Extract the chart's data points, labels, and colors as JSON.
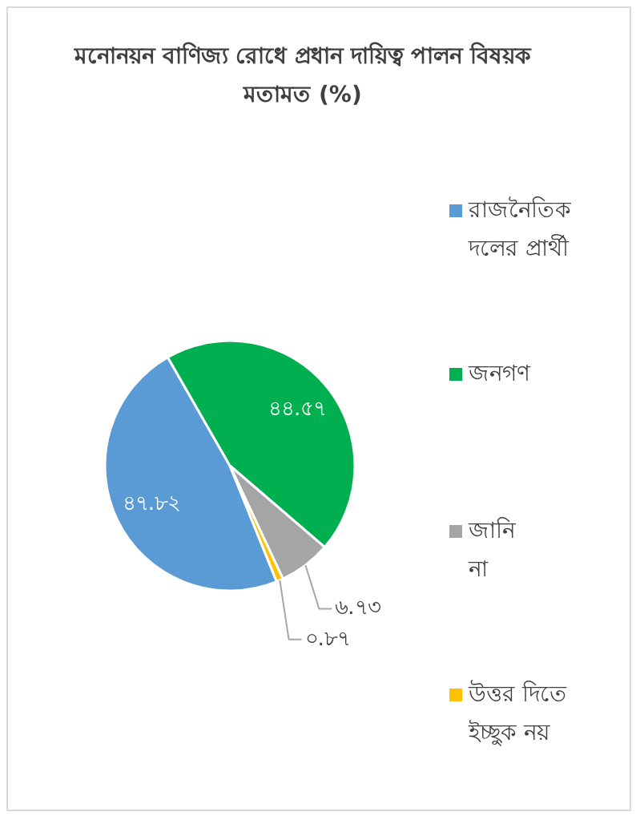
{
  "chart_data": {
    "type": "pie",
    "title": "মনোনয়ন বাণিজ্য রোধে প্রধান দায়িত্ব পালন বিষয়ক মতামত (%)",
    "categories": [
      "রাজনৈতিক দলের প্রার্থী",
      "জনগণ",
      "জানি না",
      "উত্তর দিতে ইচ্ছুক নয়"
    ],
    "values": [
      47.82,
      44.57,
      6.73,
      0.87
    ],
    "colors": [
      "#5b9bd5",
      "#00b050",
      "#a5a5a5",
      "#ffc000"
    ],
    "value_labels": [
      "৪৭.৮২",
      "৪৪.৫৭",
      "৬.৭৩",
      "০.৮৭"
    ],
    "legend": "right"
  }
}
